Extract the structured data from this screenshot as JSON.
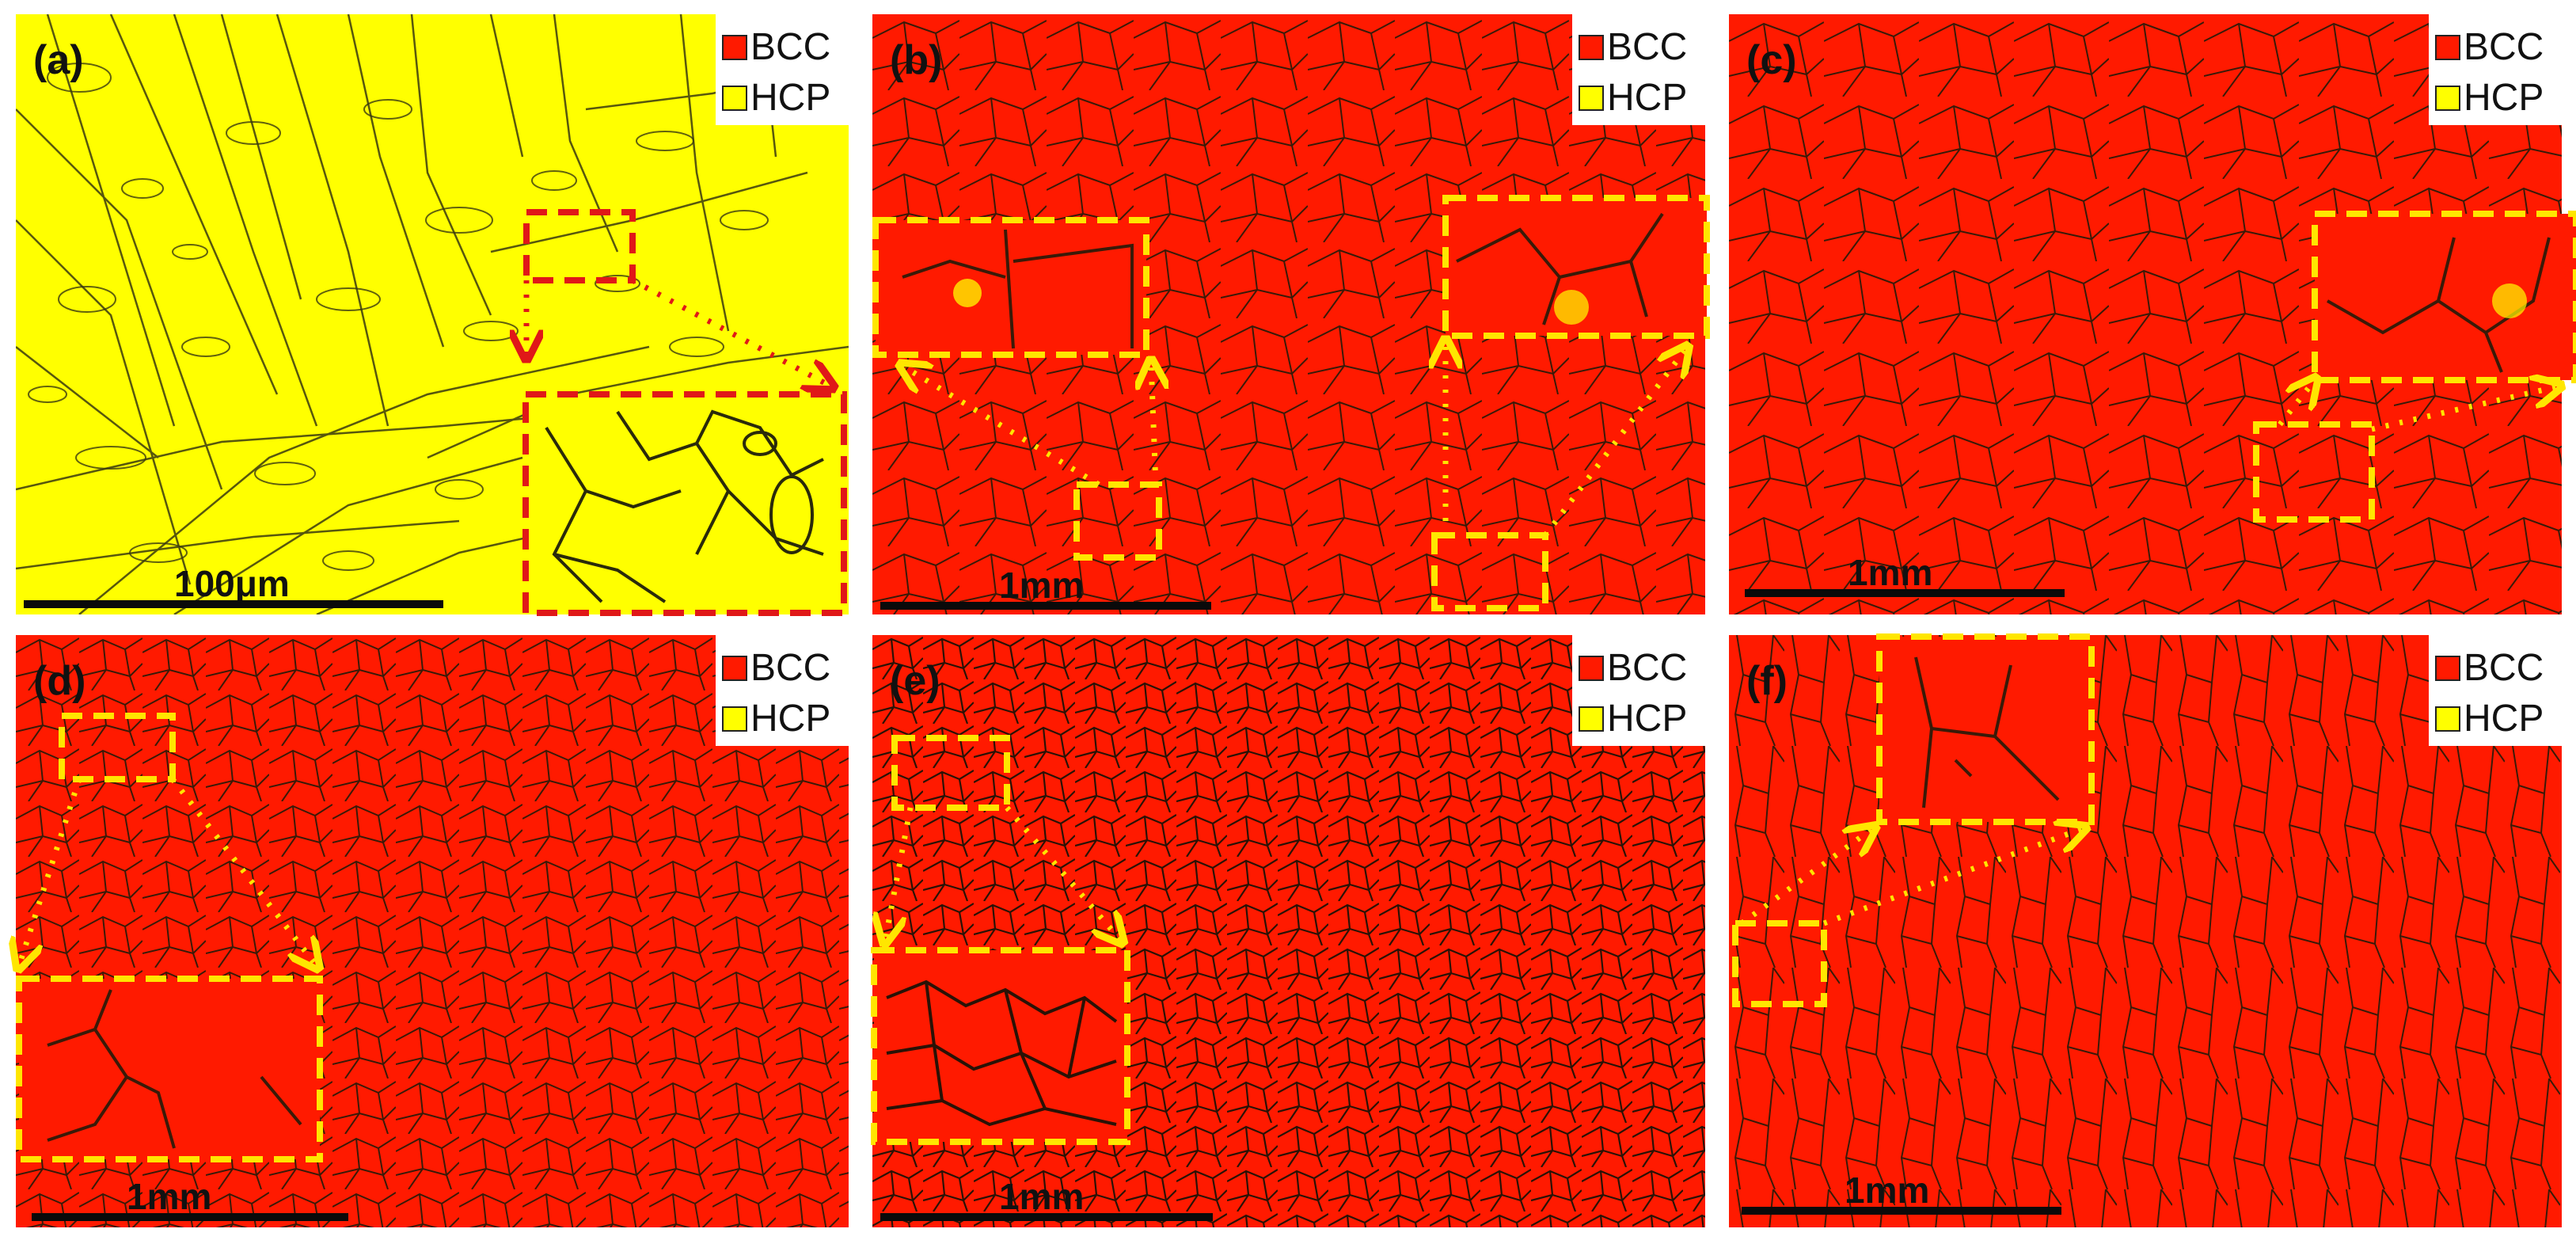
{
  "colors": {
    "bcc": "#ff1a00",
    "hcp": "#ffff00",
    "grain_boundary": "#2a1a0a",
    "callout_red": "#e01818",
    "callout_yellow": "#ffe600"
  },
  "legend": {
    "bcc_label": "BCC",
    "hcp_label": "HCP"
  },
  "panels": [
    {
      "label": "(a)",
      "phase": "HCP",
      "scale": "100μm"
    },
    {
      "label": "(b)",
      "phase": "BCC",
      "scale": "1mm"
    },
    {
      "label": "(c)",
      "phase": "BCC",
      "scale": "1mm"
    },
    {
      "label": "(d)",
      "phase": "BCC",
      "scale": "1mm"
    },
    {
      "label": "(e)",
      "phase": "BCC",
      "scale": "1mm"
    },
    {
      "label": "(f)",
      "phase": "BCC",
      "scale": "1mm"
    }
  ]
}
